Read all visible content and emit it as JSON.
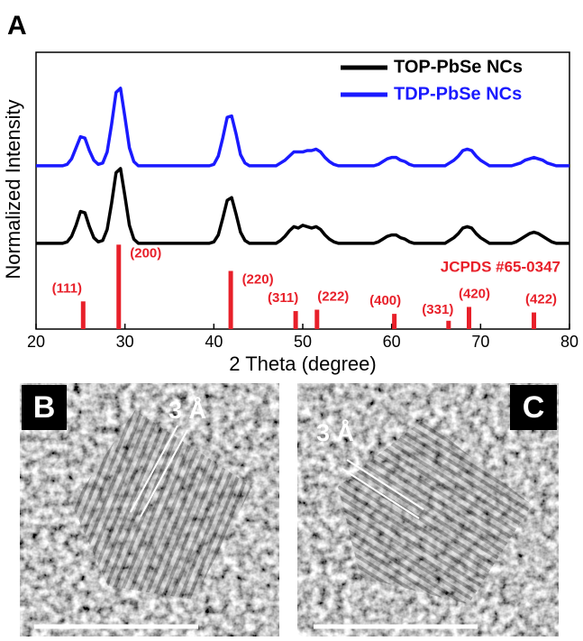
{
  "chart_data": {
    "type": "line",
    "panel_label": "A",
    "xlabel": "2 Theta (degree)",
    "ylabel": "Normalized Intensity",
    "xlim": [
      20,
      80
    ],
    "xticks": [
      20,
      30,
      40,
      50,
      60,
      70,
      80
    ],
    "ylim": [
      0,
      100
    ],
    "legend": "upper right",
    "x": [
      20,
      20.5,
      21,
      21.5,
      22,
      22.5,
      23,
      23.5,
      24,
      24.5,
      25,
      25.5,
      26,
      26.5,
      27,
      27.5,
      28,
      28.5,
      29,
      29.5,
      30,
      30.5,
      31,
      31.5,
      32,
      32.5,
      33,
      33.5,
      34,
      34.5,
      35,
      35.5,
      36,
      36.5,
      37,
      37.5,
      38,
      38.5,
      39,
      39.5,
      40,
      40.5,
      41,
      41.5,
      42,
      42.5,
      43,
      43.5,
      44,
      44.5,
      45,
      45.5,
      46,
      46.5,
      47,
      47.5,
      48,
      48.5,
      49,
      49.5,
      50,
      50.5,
      51,
      51.5,
      52,
      52.5,
      53,
      53.5,
      54,
      54.5,
      55,
      55.5,
      56,
      56.5,
      57,
      57.5,
      58,
      58.5,
      59,
      59.5,
      60,
      60.5,
      61,
      61.5,
      62,
      62.5,
      63,
      63.5,
      64,
      64.5,
      65,
      65.5,
      66,
      66.5,
      67,
      67.5,
      68,
      68.5,
      69,
      69.5,
      70,
      70.5,
      71,
      71.5,
      72,
      72.5,
      73,
      73.5,
      74,
      74.5,
      75,
      75.5,
      76,
      76.5,
      77,
      77.5,
      78,
      78.5,
      79,
      79.5,
      80
    ],
    "series": [
      {
        "name": "TOP-PbSe NCs",
        "color": "#000000",
        "values": [
          31,
          31,
          31,
          31,
          31,
          31,
          31,
          31.5,
          33.5,
          37.5,
          42.5,
          42,
          37,
          33,
          31.5,
          32,
          36,
          45.5,
          56.5,
          58,
          48,
          37.5,
          32.5,
          31,
          31,
          31,
          31,
          31,
          31,
          31,
          31,
          31,
          31,
          31,
          31,
          31,
          31,
          31,
          31,
          31,
          31.5,
          34,
          40,
          46.5,
          47.5,
          41.5,
          35,
          32,
          31,
          31,
          31,
          31,
          31,
          31,
          31,
          32,
          33.5,
          35.5,
          37,
          36.5,
          37.5,
          37,
          36.5,
          37,
          36,
          34,
          32.5,
          31.5,
          31,
          31,
          31,
          31,
          31,
          31,
          31,
          31,
          31,
          31.5,
          32.5,
          33.5,
          34,
          34,
          33,
          32.5,
          31.5,
          31,
          31,
          31,
          31,
          31,
          31,
          31,
          31,
          32,
          33,
          34.5,
          36.5,
          37,
          36.5,
          34.5,
          33,
          32,
          31,
          31,
          31,
          31,
          31,
          31,
          31.5,
          32.5,
          33.5,
          34.5,
          35,
          34.5,
          33.5,
          32.5,
          31.5,
          31,
          31,
          31,
          31
        ]
      },
      {
        "name": "TDP-PbSe NCs",
        "color": "#1a1aff",
        "values": [
          59,
          59,
          59,
          59,
          59,
          59,
          59,
          59.5,
          61.5,
          65.5,
          69.5,
          69,
          64.5,
          61,
          59.5,
          60,
          64,
          74,
          85.5,
          87,
          76.5,
          65.5,
          60.5,
          59,
          59,
          59,
          59,
          59,
          59,
          59,
          59,
          59,
          59,
          59,
          59,
          59,
          59,
          59,
          59,
          59,
          59.5,
          62.5,
          69,
          76.5,
          77,
          70.5,
          63,
          60,
          59,
          59,
          59,
          59,
          59,
          59,
          59,
          60,
          61,
          62.5,
          64,
          64,
          64,
          64.5,
          64.5,
          65,
          64,
          62,
          60.5,
          59.5,
          59,
          59,
          59,
          59,
          59,
          59,
          59,
          59,
          59,
          59.5,
          60.5,
          61.5,
          62,
          62,
          61,
          60.5,
          59.5,
          59,
          59,
          59,
          59,
          59,
          59,
          59,
          59,
          60,
          61,
          62.5,
          64.5,
          65,
          64.5,
          62.5,
          61,
          60,
          59,
          59,
          59,
          59,
          59,
          59,
          59.5,
          60,
          61,
          61.5,
          62,
          61.5,
          61,
          60,
          59.5,
          59,
          59,
          59,
          59
        ]
      }
    ],
    "reference": {
      "name": "JCPDS #65-0347",
      "color": "#e8202a",
      "x": [
        25.3,
        29.3,
        41.9,
        49.2,
        51.6,
        60.3,
        66.4,
        68.7,
        76.0
      ],
      "values": [
        10,
        30.5,
        21,
        6.5,
        7,
        5.5,
        3,
        8,
        6
      ],
      "labels": [
        "(111)",
        "(200)",
        "(220)",
        "(311)",
        "(222)",
        "(400)",
        "(331)",
        "(420)",
        "(422)"
      ]
    }
  },
  "panels": [
    {
      "label": "B",
      "annotation": "3 Å"
    },
    {
      "label": "C",
      "annotation": "3 Å"
    }
  ]
}
